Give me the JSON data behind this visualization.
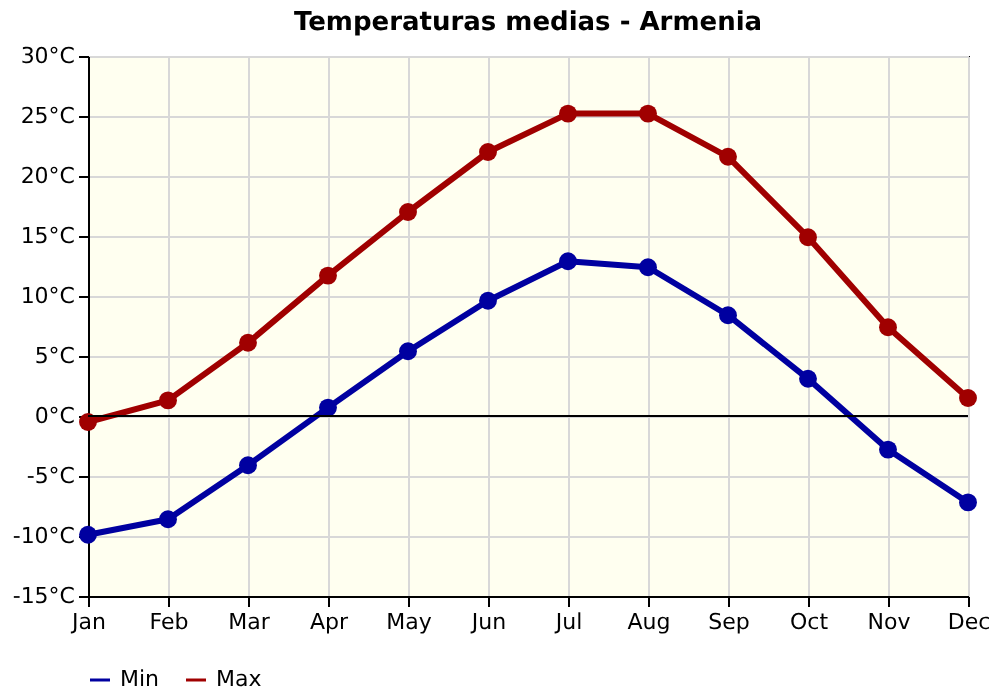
{
  "chart_data": {
    "type": "line",
    "title": "Temperaturas medias - Armenia",
    "categories": [
      "Jan",
      "Feb",
      "Mar",
      "Apr",
      "May",
      "Jun",
      "Jul",
      "Aug",
      "Sep",
      "Oct",
      "Nov",
      "Dec"
    ],
    "series": [
      {
        "name": "Min",
        "color": "#0000a0",
        "values": [
          -9.9,
          -8.6,
          -4.1,
          0.7,
          5.4,
          9.6,
          12.9,
          12.4,
          8.4,
          3.1,
          -2.8,
          -7.2
        ]
      },
      {
        "name": "Max",
        "color": "#a00000",
        "values": [
          -0.5,
          1.3,
          6.1,
          11.7,
          17.0,
          22.0,
          25.2,
          25.2,
          21.6,
          14.9,
          7.4,
          1.5
        ]
      }
    ],
    "ylim": [
      -15,
      30
    ],
    "yticks": [
      {
        "value": -15,
        "label": "-15°C"
      },
      {
        "value": -10,
        "label": "-10°C"
      },
      {
        "value": -5,
        "label": "-5°C"
      },
      {
        "value": 0,
        "label": "0°C"
      },
      {
        "value": 5,
        "label": "5°C"
      },
      {
        "value": 10,
        "label": "10°C"
      },
      {
        "value": 15,
        "label": "15°C"
      },
      {
        "value": 20,
        "label": "20°C"
      },
      {
        "value": 25,
        "label": "25°C"
      },
      {
        "value": 30,
        "label": "30°C"
      }
    ],
    "ref_lines": [
      {
        "axis": "y",
        "value": 0,
        "color": "#000000"
      }
    ],
    "grid": true,
    "legend": "bottom",
    "marker": "circle",
    "line_style": "solid"
  }
}
